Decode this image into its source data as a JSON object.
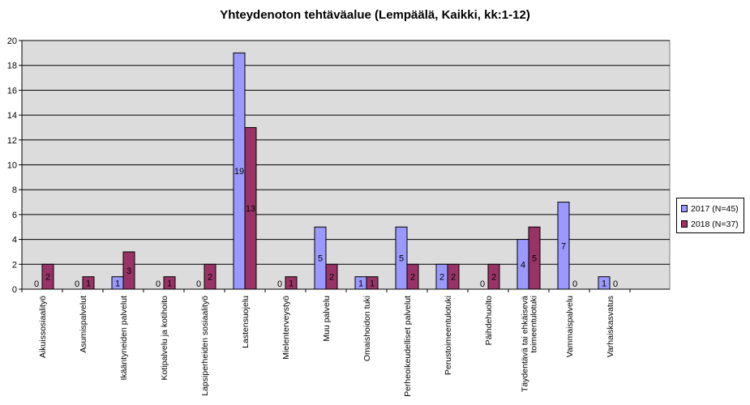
{
  "chart_data": {
    "type": "bar",
    "title": "Yhteydenoton tehtäväalue (Lempäälä, Kaikki, kk:1-12)",
    "xlabel": "",
    "ylabel": "",
    "ylim": [
      0,
      20
    ],
    "yticks": [
      0,
      2,
      4,
      6,
      8,
      10,
      12,
      14,
      16,
      18,
      20
    ],
    "grid": true,
    "legend_position": "right",
    "plot_background": "#dcdcdc",
    "categories": [
      "Aikuissosiaalityö",
      "Asumispalvelut",
      "Ikääntyneiden palvelut",
      "Kotipalvelu ja kotihoito",
      "Lapsiperheiden sosiaalityö",
      "Lastensuojelu",
      "Mielenterveystyö",
      "Muu palvelu",
      "Omaishoidon tuki",
      "Perheoikeudelliset palvelut",
      "Perustoimeentulotuki",
      "Päihdehuolto",
      "Täydentävä tai ehkäisevä toimeentulotuki",
      "Vammaispalvelu",
      "Varhaiskasvatus"
    ],
    "series": [
      {
        "name": "2017 (N=45)",
        "color": "#9999ff",
        "values": [
          0,
          0,
          1,
          0,
          0,
          19,
          0,
          5,
          1,
          5,
          2,
          0,
          4,
          7,
          1
        ]
      },
      {
        "name": "2018 (N=37)",
        "color": "#993366",
        "values": [
          2,
          1,
          3,
          1,
          2,
          13,
          1,
          2,
          1,
          2,
          2,
          2,
          5,
          0,
          0
        ]
      }
    ]
  }
}
